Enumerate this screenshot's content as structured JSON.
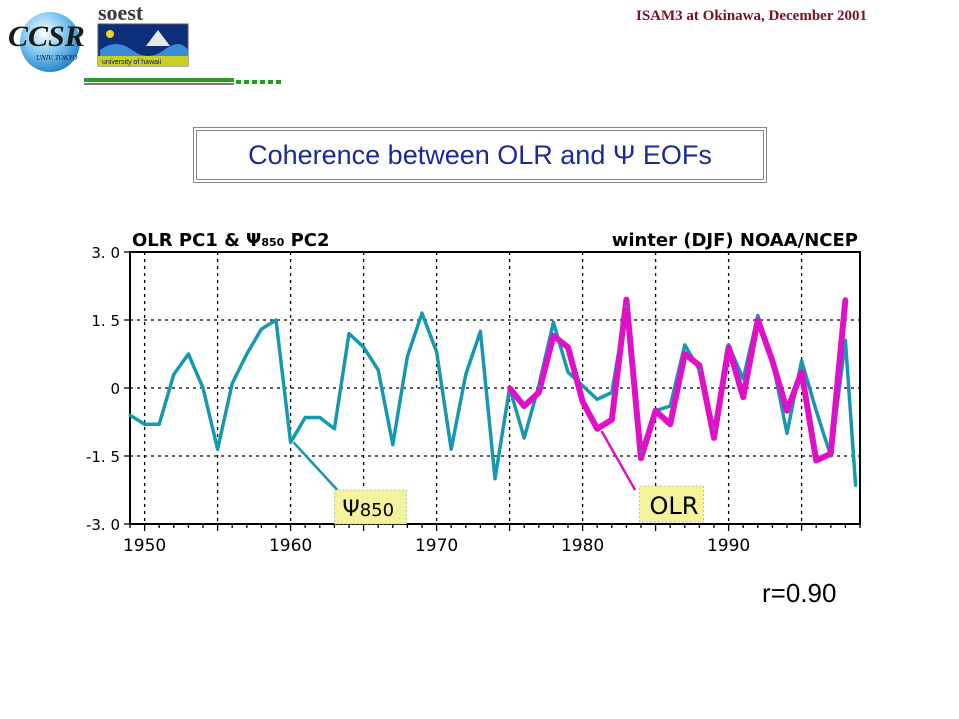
{
  "header": {
    "title": "ISAM3 at Okinawa, December 2001",
    "logo_left": {
      "main": "CCSR",
      "sub": "UNIV. TOKYO"
    },
    "logo_right": {
      "main": "soest",
      "sub": "university of hawaii"
    }
  },
  "slide_title": "Coherence between OLR and Ψ EOFs",
  "correlation": "r=0.90",
  "colors": {
    "psi_series": "#1898b0",
    "olr_series": "#e010c8",
    "title_text": "#1a2a9a",
    "header_text": "#7a1020",
    "label_bg": "#f4f29a"
  },
  "chart_data": {
    "type": "line",
    "title_left": "OLR PC1 & Ψ",
    "title_left_sub": "850",
    "title_left_suffix": " PC2",
    "title_right": "winter (DJF) NOAA/NCEP",
    "xlim": [
      1949,
      1999
    ],
    "ylim": [
      -3.0,
      3.0
    ],
    "x_ticks": [
      1950,
      1960,
      1970,
      1980,
      1990
    ],
    "y_ticks": [
      3.0,
      1.5,
      0,
      -1.5,
      -3.0
    ],
    "y_tick_labels": [
      "3. 0",
      "1. 5",
      "0",
      "-1. 5",
      "-3. 0"
    ],
    "grid": true,
    "series": [
      {
        "name": "Ψ850",
        "label_main": "Ψ",
        "label_sub": "850",
        "x": [
          1949,
          1950,
          1951,
          1952,
          1953,
          1954,
          1955,
          1956,
          1957,
          1958,
          1959,
          1960,
          1961,
          1962,
          1963,
          1964,
          1965,
          1966,
          1967,
          1968,
          1969,
          1970,
          1971,
          1972,
          1973,
          1974,
          1975,
          1976,
          1977,
          1978,
          1979,
          1980,
          1981,
          1982,
          1983,
          1984,
          1985,
          1986,
          1987,
          1988,
          1989,
          1990,
          1991,
          1992,
          1993,
          1994,
          1995,
          1996,
          1997,
          1998,
          1998.7
        ],
        "values": [
          -0.6,
          -0.8,
          -0.8,
          0.3,
          0.75,
          0.0,
          -1.35,
          0.1,
          0.75,
          1.3,
          1.5,
          -1.2,
          -0.65,
          -0.65,
          -0.9,
          1.2,
          0.9,
          0.4,
          -1.25,
          0.7,
          1.65,
          0.8,
          -1.35,
          0.3,
          1.25,
          -2.0,
          0.0,
          -1.1,
          0.05,
          1.45,
          0.35,
          0.05,
          -0.25,
          -0.1,
          1.8,
          -1.4,
          -0.5,
          -0.4,
          0.95,
          0.4,
          -0.9,
          0.95,
          0.2,
          1.6,
          0.6,
          -1.0,
          0.6,
          -0.5,
          -1.5,
          1.05,
          -2.15
        ]
      },
      {
        "name": "OLR",
        "label_main": "OLR",
        "x": [
          1975,
          1976,
          1977,
          1978,
          1979,
          1980,
          1981,
          1982,
          1983,
          1984,
          1985,
          1986,
          1987,
          1988,
          1989,
          1990,
          1991,
          1992,
          1993,
          1994,
          1995,
          1996,
          1997,
          1998
        ],
        "values": [
          0.0,
          -0.4,
          -0.1,
          1.15,
          0.9,
          -0.3,
          -0.9,
          -0.7,
          1.95,
          -1.55,
          -0.5,
          -0.8,
          0.75,
          0.5,
          -1.1,
          0.9,
          -0.2,
          1.5,
          0.6,
          -0.5,
          0.35,
          -1.6,
          -1.45,
          1.95
        ]
      }
    ]
  }
}
